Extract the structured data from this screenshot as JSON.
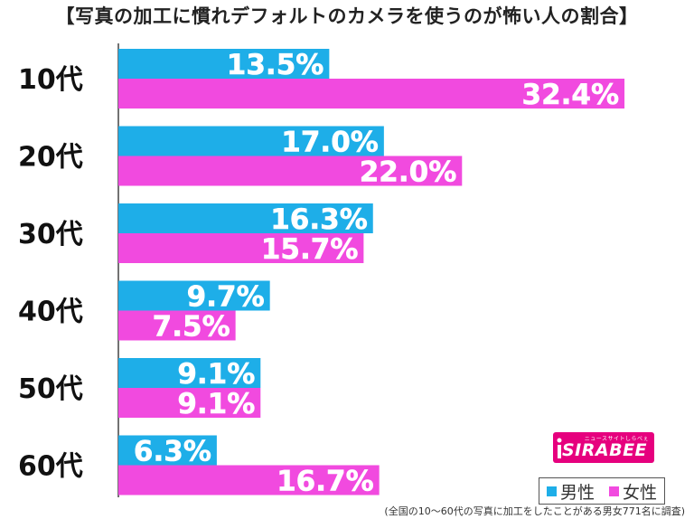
{
  "title": "【写真の加工に慣れデフォルトのカメラを使うのが怖い人の割合】",
  "chart_data": {
    "type": "bar",
    "orientation": "horizontal",
    "categories": [
      "10代",
      "20代",
      "30代",
      "40代",
      "50代",
      "60代"
    ],
    "series": [
      {
        "name": "男性",
        "color": "#1eaee8",
        "values": [
          13.5,
          17.0,
          16.3,
          9.7,
          9.1,
          6.3
        ]
      },
      {
        "name": "女性",
        "color": "#f14adf",
        "values": [
          32.4,
          22.0,
          15.7,
          7.5,
          9.1,
          16.7
        ]
      }
    ],
    "value_format": "{v}%",
    "xlim": [
      0,
      35
    ],
    "grid": false,
    "legend": "bottom-right"
  },
  "legend": {
    "male_label": "男性",
    "female_label": "女性"
  },
  "note": "(全国の10〜60代の写真に加工をしたことがある男女771名に調査)",
  "logo": {
    "text": "SIRABEE",
    "sub_text": "ニュースサイトしらべぇ",
    "color": "#e6007e"
  }
}
